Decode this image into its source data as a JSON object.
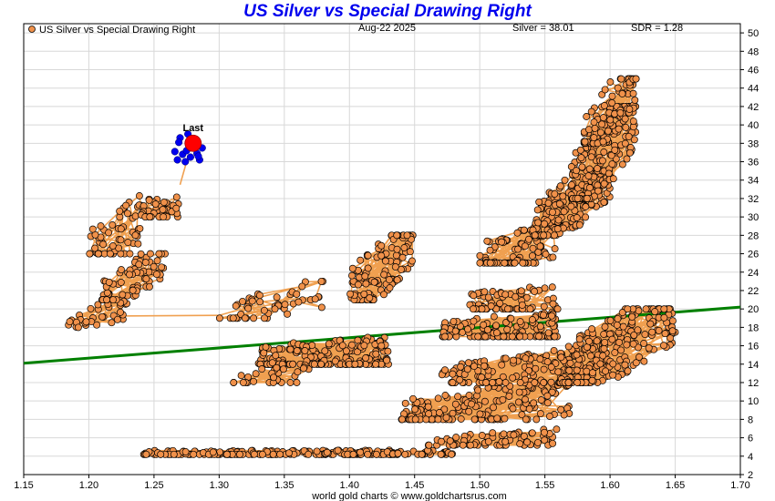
{
  "chart_data": {
    "type": "scatter",
    "title": "US Silver vs Special Drawing Right",
    "legend": "US Silver vs Special Drawing Right",
    "legend_position": "top-left",
    "date_text": "Aug-22  2025",
    "silver_text": "Silver = 38.01",
    "sdr_text": "SDR = 1.28",
    "footer": "world gold charts © www.goldchartsrus.com",
    "last_label": "Last",
    "xlim": [
      1.15,
      1.7
    ],
    "ylim": [
      2,
      51
    ],
    "x_ticks": [
      "1.15",
      "1.20",
      "1.25",
      "1.30",
      "1.35",
      "1.40",
      "1.45",
      "1.50",
      "1.55",
      "1.60",
      "1.65",
      "1.70"
    ],
    "y_ticks": [
      "2",
      "4",
      "6",
      "8",
      "10",
      "12",
      "14",
      "16",
      "18",
      "20",
      "22",
      "24",
      "26",
      "28",
      "30",
      "32",
      "34",
      "36",
      "38",
      "40",
      "42",
      "44",
      "46",
      "48",
      "50"
    ],
    "grid": true,
    "colors": {
      "title": "#0000ee",
      "points": "#f0914a",
      "point_edge": "#000000",
      "path": "#f0a050",
      "trend": "#008000",
      "recent": "#0000ee",
      "last": "#ff0000",
      "grid": "#d8d8d8"
    },
    "trend_line": {
      "x": [
        1.15,
        1.7
      ],
      "y": [
        14.1,
        20.2
      ]
    },
    "last_point": {
      "x": 1.28,
      "y": 38.01
    },
    "recent_points": [
      [
        1.268,
        36.2
      ],
      [
        1.272,
        36.8
      ],
      [
        1.275,
        37.2
      ],
      [
        1.278,
        36.5
      ],
      [
        1.283,
        36.9
      ],
      [
        1.285,
        36.2
      ],
      [
        1.27,
        38.6
      ],
      [
        1.276,
        39.0
      ],
      [
        1.281,
        38.3
      ],
      [
        1.287,
        37.5
      ],
      [
        1.266,
        37.1
      ],
      [
        1.274,
        36.0
      ],
      [
        1.279,
        37.8
      ],
      [
        1.284,
        36.6
      ],
      [
        1.269,
        38.1
      ]
    ],
    "clusters": [
      {
        "name": "base",
        "x": [
          1.24,
          1.48
        ],
        "y": [
          4.2,
          5.1
        ],
        "n": 230,
        "slope": 2.5
      },
      {
        "name": "base-tail",
        "x": [
          1.46,
          1.56
        ],
        "y": [
          5.2,
          7.2
        ],
        "n": 70,
        "slope": 18
      },
      {
        "name": "early-low",
        "x": [
          1.18,
          1.23
        ],
        "y": [
          18,
          21
        ],
        "n": 35,
        "slope": 30
      },
      {
        "name": "early-mid",
        "x": [
          1.21,
          1.26
        ],
        "y": [
          21,
          26
        ],
        "n": 70,
        "slope": 70
      },
      {
        "name": "early-up",
        "x": [
          1.2,
          1.24
        ],
        "y": [
          26,
          33
        ],
        "n": 60,
        "slope": 20
      },
      {
        "name": "early-top",
        "x": [
          1.24,
          1.27
        ],
        "y": [
          30,
          34
        ],
        "n": 45,
        "slope": 10
      },
      {
        "name": "mid-left",
        "x": [
          1.33,
          1.43
        ],
        "y": [
          14,
          18.5
        ],
        "n": 210,
        "slope": 10
      },
      {
        "name": "mid-upper",
        "x": [
          1.3,
          1.38
        ],
        "y": [
          19,
          23
        ],
        "n": 50,
        "slope": 30
      },
      {
        "name": "mid-right",
        "x": [
          1.4,
          1.45
        ],
        "y": [
          21,
          28
        ],
        "n": 120,
        "slope": 80
      },
      {
        "name": "mid-low",
        "x": [
          1.31,
          1.37
        ],
        "y": [
          12,
          15
        ],
        "n": 30,
        "slope": 10
      },
      {
        "name": "lower-band",
        "x": [
          1.44,
          1.57
        ],
        "y": [
          8,
          13
        ],
        "n": 160,
        "slope": 20
      },
      {
        "name": "lower-rise",
        "x": [
          1.47,
          1.6
        ],
        "y": [
          12,
          16
        ],
        "n": 150,
        "slope": 25
      },
      {
        "name": "mid-band",
        "x": [
          1.47,
          1.56
        ],
        "y": [
          17,
          21
        ],
        "n": 130,
        "slope": 10
      },
      {
        "name": "right-low",
        "x": [
          1.56,
          1.65
        ],
        "y": [
          12,
          20
        ],
        "n": 200,
        "slope": 55
      },
      {
        "name": "upper-mid",
        "x": [
          1.49,
          1.56
        ],
        "y": [
          20,
          24
        ],
        "n": 70,
        "slope": 10
      },
      {
        "name": "upper-lo",
        "x": [
          1.5,
          1.56
        ],
        "y": [
          25,
          30
        ],
        "n": 90,
        "slope": 20
      },
      {
        "name": "upper-main",
        "x": [
          1.54,
          1.6
        ],
        "y": [
          28,
          35
        ],
        "n": 170,
        "slope": 45
      },
      {
        "name": "upper-high",
        "x": [
          1.57,
          1.62
        ],
        "y": [
          32,
          42
        ],
        "n": 170,
        "slope": 110
      },
      {
        "name": "peak",
        "x": [
          1.58,
          1.62
        ],
        "y": [
          38,
          45
        ],
        "n": 90,
        "slope": 70
      }
    ]
  }
}
